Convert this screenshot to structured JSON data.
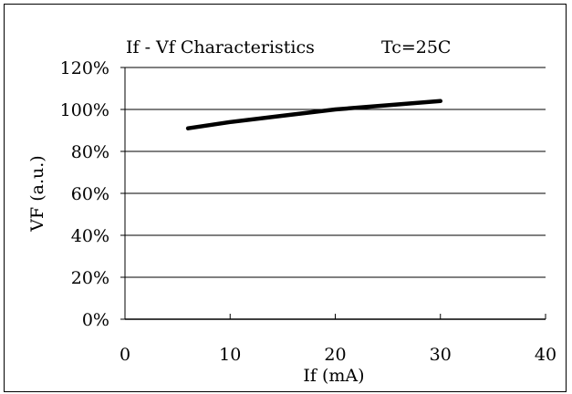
{
  "chart_data": {
    "type": "line",
    "title": "If - Vf Characteristics",
    "condition": "Tc=25C",
    "xlabel": "If (mA)",
    "ylabel": "VF (a.u.)",
    "xlim": [
      0,
      40
    ],
    "ylim": [
      0,
      1.2
    ],
    "x_ticks": [
      "0",
      "10",
      "20",
      "30",
      "40"
    ],
    "y_ticks": [
      "0%",
      "20%",
      "40%",
      "60%",
      "80%",
      "100%",
      "120%"
    ],
    "grid": "horizontal",
    "legend": "none",
    "series": [
      {
        "color": "#000000",
        "x": [
          6,
          10,
          15,
          20,
          25,
          30
        ],
        "y": [
          0.91,
          0.94,
          0.97,
          1.0,
          1.02,
          1.04
        ]
      }
    ]
  }
}
